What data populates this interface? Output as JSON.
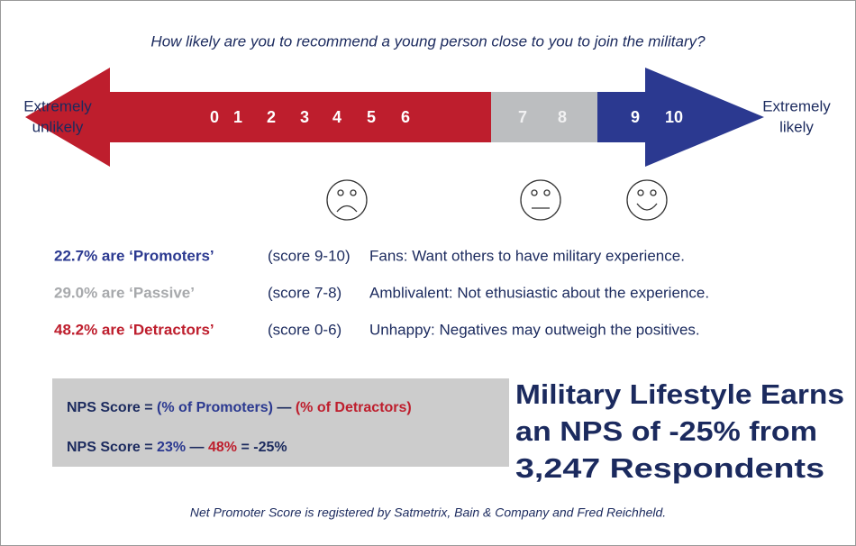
{
  "question": "How likely are you to recommend a young person close to you to join the military?",
  "scale": {
    "left_label": [
      "Extremely",
      "unlikely"
    ],
    "right_label": [
      "Extremely",
      "likely"
    ],
    "numbers": [
      0,
      1,
      2,
      3,
      4,
      5,
      6,
      7,
      8,
      9,
      10
    ]
  },
  "groups": [
    {
      "share": "22.7% are ‘Promoters’",
      "range": "(score 9-10)",
      "description": "Fans: Want others to have military experience."
    },
    {
      "share": "29.0% are ‘Passive’",
      "range": "(score 7-8)",
      "description": "Amblivalent: Not ethusiastic about the experience."
    },
    {
      "share": "48.2% are ‘Detractors’",
      "range": "(score 0-6)",
      "description": "Unhappy: Negatives may outweigh the positives."
    }
  ],
  "formula": {
    "line1": [
      "NPS Score = ",
      "(% of Promoters)",
      " — ",
      "(% of Detractors)"
    ],
    "line2": [
      "NPS Score = ",
      "23%",
      " — ",
      "48%",
      " = -25%"
    ]
  },
  "headline": [
    "Military Lifestyle Earns",
    "an NPS of -25% from",
    "3,247 Respondents"
  ],
  "footnote": "Net Promoter Score is registered by Satmetrix, Bain & Company and Fred Reichheld."
}
